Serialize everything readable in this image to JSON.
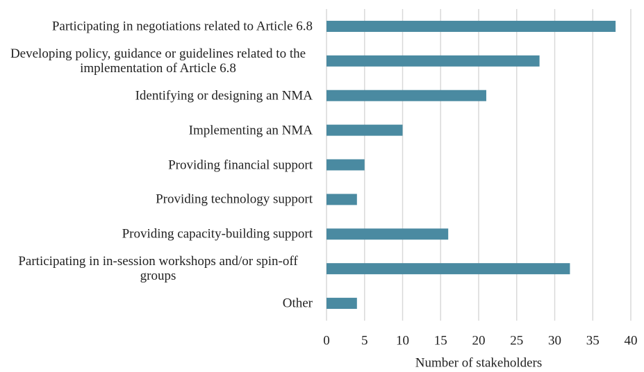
{
  "chart_data": {
    "type": "barh",
    "categories": [
      "Participating in negotiations related to Article 6.8",
      "Developing policy, guidance or guidelines related to the implementation of Article 6.8",
      "Identifying or designing an NMA",
      "Implementing an NMA",
      "Providing financial support",
      "Providing technology support",
      "Providing capacity-building support",
      "Participating in in-session workshops and/or spin-off groups",
      "Other"
    ],
    "values": [
      38,
      28,
      21,
      10,
      5,
      4,
      16,
      32,
      4
    ],
    "color": "#4a8aa1",
    "xlabel": "Number of stakeholders",
    "xlim": [
      0,
      40
    ],
    "xticks": [
      0,
      5,
      10,
      15,
      20,
      25,
      30,
      35,
      40
    ],
    "grid": true
  }
}
